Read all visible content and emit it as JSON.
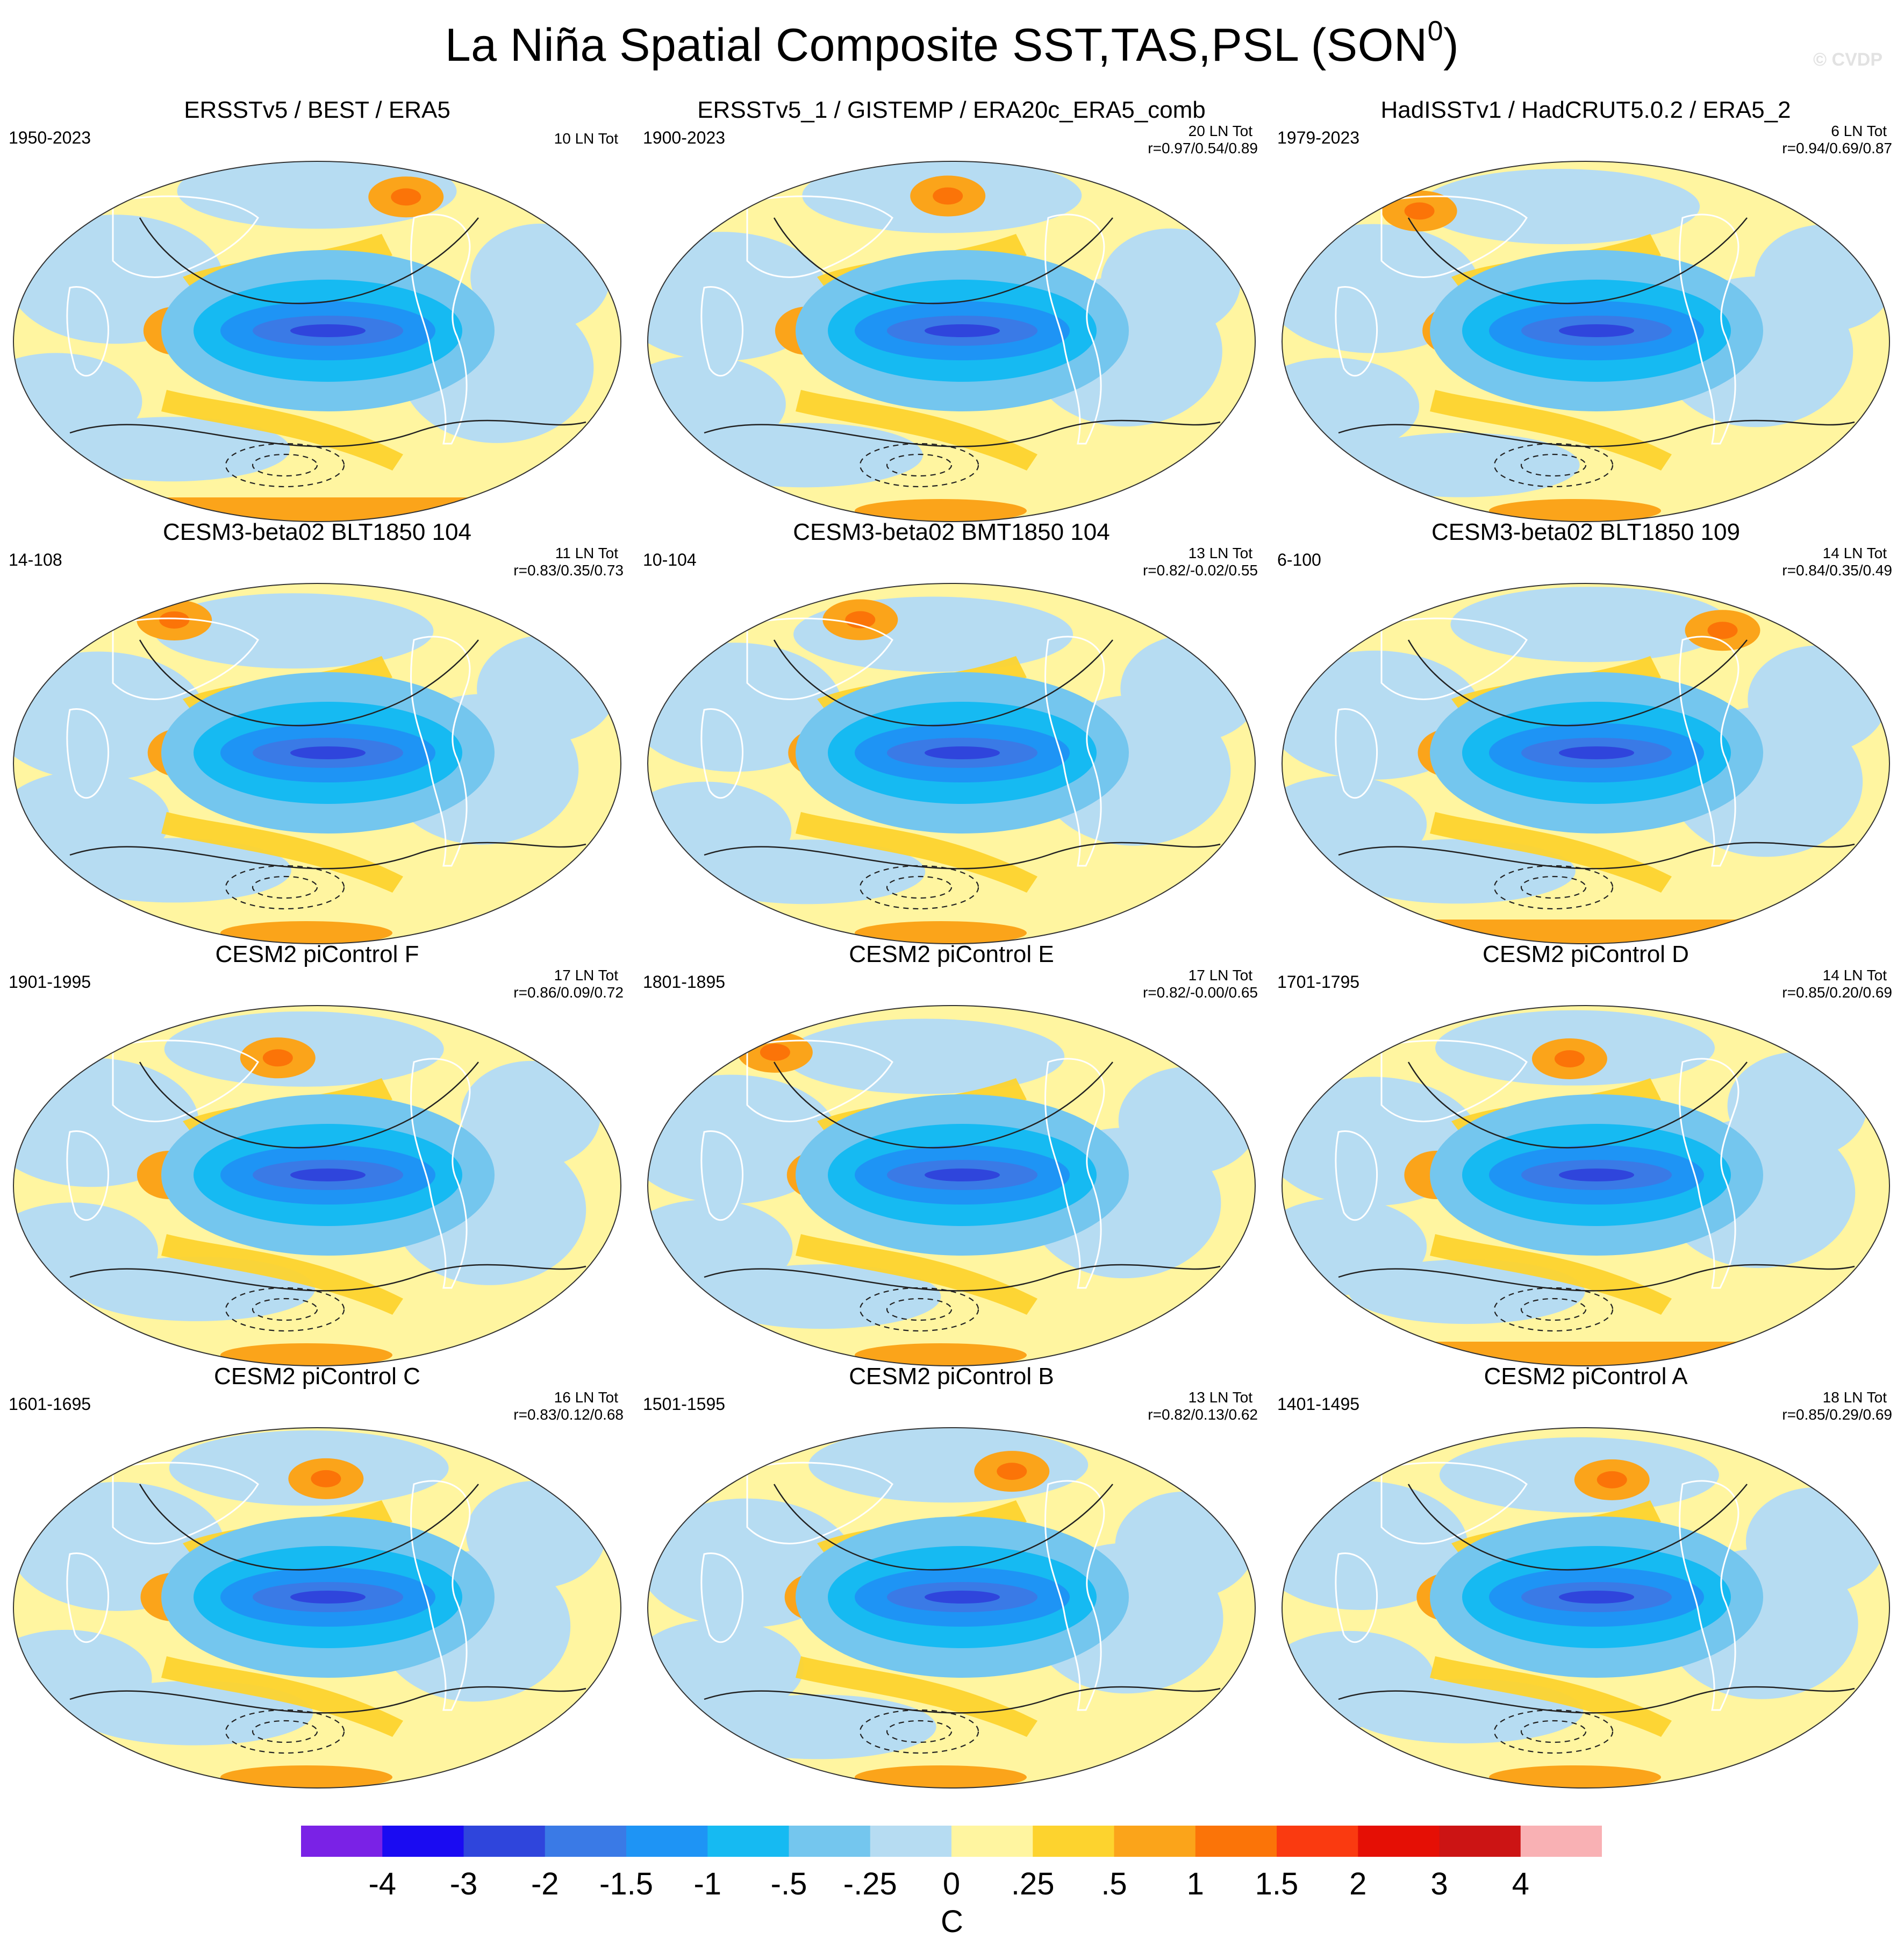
{
  "figure": {
    "title": "La Niña Spatial Composite SST,TAS,PSL (SON",
    "title_sup": "0",
    "title_close": ")",
    "watermark": "© CVDP"
  },
  "panels": [
    {
      "title": "ERSSTv5 / BEST / ERA5",
      "years": "1950-2023",
      "ln_count": "10 LN Tot",
      "stats": "",
      "variant": 0
    },
    {
      "title": "ERSSTv5_1 / GISTEMP / ERA20c_ERA5_comb",
      "years": "1900-2023",
      "ln_count": "20 LN Tot",
      "stats": "r=0.97/0.54/0.89",
      "variant": 1
    },
    {
      "title": "HadISSTv1 / HadCRUT5.0.2 / ERA5_2",
      "years": "1979-2023",
      "ln_count": "6 LN Tot",
      "stats": "r=0.94/0.69/0.87",
      "variant": 2
    },
    {
      "title": "CESM3-beta02 BLT1850 104",
      "years": "14-108",
      "ln_count": "11 LN Tot",
      "stats": "r=0.83/0.35/0.73",
      "variant": 3
    },
    {
      "title": "CESM3-beta02 BMT1850 104",
      "years": "10-104",
      "ln_count": "13 LN Tot",
      "stats": "r=0.82/-0.02/0.55",
      "variant": 4
    },
    {
      "title": "CESM3-beta02 BLT1850 109",
      "years": "6-100",
      "ln_count": "14 LN Tot",
      "stats": "r=0.84/0.35/0.49",
      "variant": 5
    },
    {
      "title": "CESM2 piControl F",
      "years": "1901-1995",
      "ln_count": "17 LN Tot",
      "stats": "r=0.86/0.09/0.72",
      "variant": 6
    },
    {
      "title": "CESM2 piControl E",
      "years": "1801-1895",
      "ln_count": "17 LN Tot",
      "stats": "r=0.82/-0.00/0.65",
      "variant": 7
    },
    {
      "title": "CESM2 piControl D",
      "years": "1701-1795",
      "ln_count": "14 LN Tot",
      "stats": "r=0.85/0.20/0.69",
      "variant": 8
    },
    {
      "title": "CESM2 piControl C",
      "years": "1601-1695",
      "ln_count": "16 LN Tot",
      "stats": "r=0.83/0.12/0.68",
      "variant": 9
    },
    {
      "title": "CESM2 piControl B",
      "years": "1501-1595",
      "ln_count": "13 LN Tot",
      "stats": "r=0.82/0.13/0.62",
      "variant": 10
    },
    {
      "title": "CESM2 piControl A",
      "years": "1401-1495",
      "ln_count": "18 LN Tot",
      "stats": "r=0.85/0.29/0.69",
      "variant": 11
    }
  ],
  "colorbar": {
    "unit": "C",
    "labels": [
      "-4",
      "-3",
      "-2",
      "-1.5",
      "-1",
      "-.5",
      "-.25",
      "0",
      ".25",
      ".5",
      "1",
      "1.5",
      "2",
      "3",
      "4"
    ],
    "colors": [
      "#7a22e6",
      "#1a0bf2",
      "#2f45dc",
      "#3a7ae6",
      "#1e94f5",
      "#16baf2",
      "#74c6ee",
      "#b6dcf2",
      "#fff5a0",
      "#fdd32e",
      "#fba41a",
      "#fb7408",
      "#fa3a10",
      "#e50f05",
      "#cc1414",
      "#f9b1b4"
    ]
  }
}
